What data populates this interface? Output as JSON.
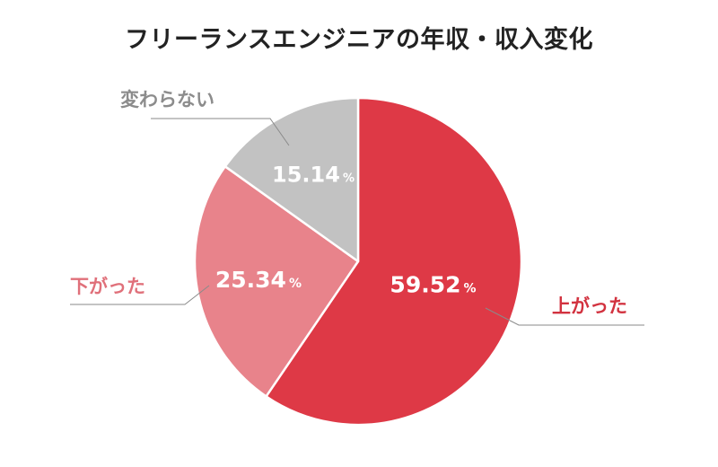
{
  "chart_data": {
    "type": "pie",
    "title": "フリーランスエンジニアの年収・収入変化",
    "unit": "%",
    "slices": [
      {
        "label": "上がった",
        "value": 59.52,
        "color": "#de3946",
        "label_color": "#d2323f"
      },
      {
        "label": "下がった",
        "value": 25.34,
        "color": "#e8838b",
        "label_color": "#e0707a"
      },
      {
        "label": "変わらない",
        "value": 15.14,
        "color": "#c2c2c2",
        "label_color": "#8c8c8c"
      }
    ],
    "start_angle": "12 o'clock",
    "direction": "clockwise",
    "legend": "none"
  }
}
